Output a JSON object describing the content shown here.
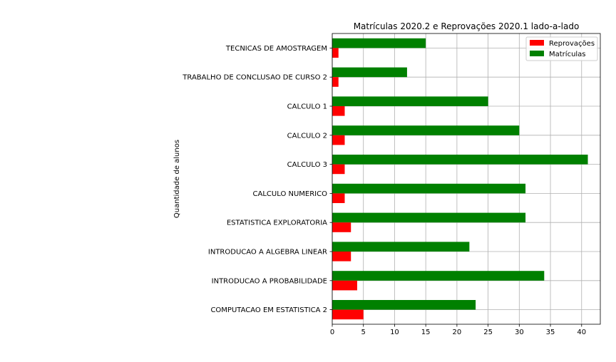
{
  "chart_data": {
    "type": "bar",
    "orientation": "horizontal",
    "title": "Matrículas 2020.2 e Reprovações 2020.1 lado-a-lado",
    "ylabel": "Quantidade de alunos",
    "xlabel": "",
    "categories": [
      "TECNICAS DE AMOSTRAGEM",
      "TRABALHO DE CONCLUSAO DE CURSO 2",
      "CALCULO 1",
      "CALCULO 2",
      "CALCULO 3",
      "CALCULO NUMERICO",
      "ESTATISTICA EXPLORATORIA",
      "INTRODUCAO A ALGEBRA LINEAR",
      "INTRODUCAO A PROBABILIDADE",
      "COMPUTACAO EM ESTATISTICA 2"
    ],
    "series": [
      {
        "name": "Reprovações",
        "color": "#ff0000",
        "values": [
          1,
          1,
          2,
          2,
          2,
          2,
          3,
          3,
          4,
          5
        ]
      },
      {
        "name": "Matrículas",
        "color": "#008000",
        "values": [
          15,
          12,
          25,
          30,
          41,
          31,
          31,
          22,
          34,
          23
        ]
      }
    ],
    "xlim": [
      0,
      43
    ],
    "xticks": [
      "0",
      "5",
      "10",
      "15",
      "20",
      "25",
      "30",
      "35",
      "40"
    ],
    "grid": true,
    "legend_position": "top-right"
  }
}
